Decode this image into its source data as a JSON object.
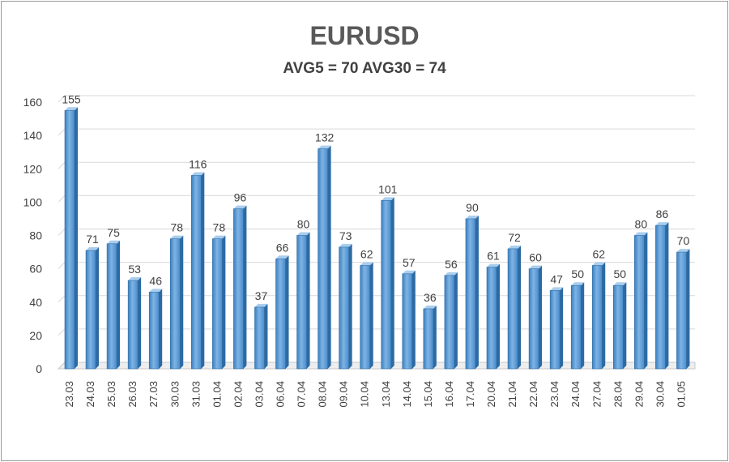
{
  "chart_data": {
    "type": "bar",
    "title": "EURUSD",
    "subtitle": "AVG5 = 70 AVG30 = 74",
    "xlabel": "",
    "ylabel": "",
    "ylim": [
      0,
      160
    ],
    "yticks": [
      0,
      20,
      40,
      60,
      80,
      100,
      120,
      140,
      160
    ],
    "grid": true,
    "legend": "none",
    "bar_color": "#5b9bd5",
    "bar_color_dark": "#2e6da4",
    "categories": [
      "23.03",
      "24.03",
      "25.03",
      "26.03",
      "27.03",
      "30.03",
      "31.03",
      "01.04",
      "02.04",
      "03.04",
      "06.04",
      "07.04",
      "08.04",
      "09.04",
      "10.04",
      "13.04",
      "14.04",
      "15.04",
      "16.04",
      "17.04",
      "20.04",
      "21.04",
      "22.04",
      "23.04",
      "24.04",
      "27.04",
      "28.04",
      "29.04",
      "30.04",
      "01.05"
    ],
    "values": [
      155,
      71,
      75,
      53,
      46,
      78,
      116,
      78,
      96,
      37,
      66,
      80,
      132,
      73,
      62,
      101,
      57,
      36,
      56,
      90,
      61,
      72,
      60,
      47,
      50,
      62,
      50,
      80,
      86,
      70
    ]
  }
}
